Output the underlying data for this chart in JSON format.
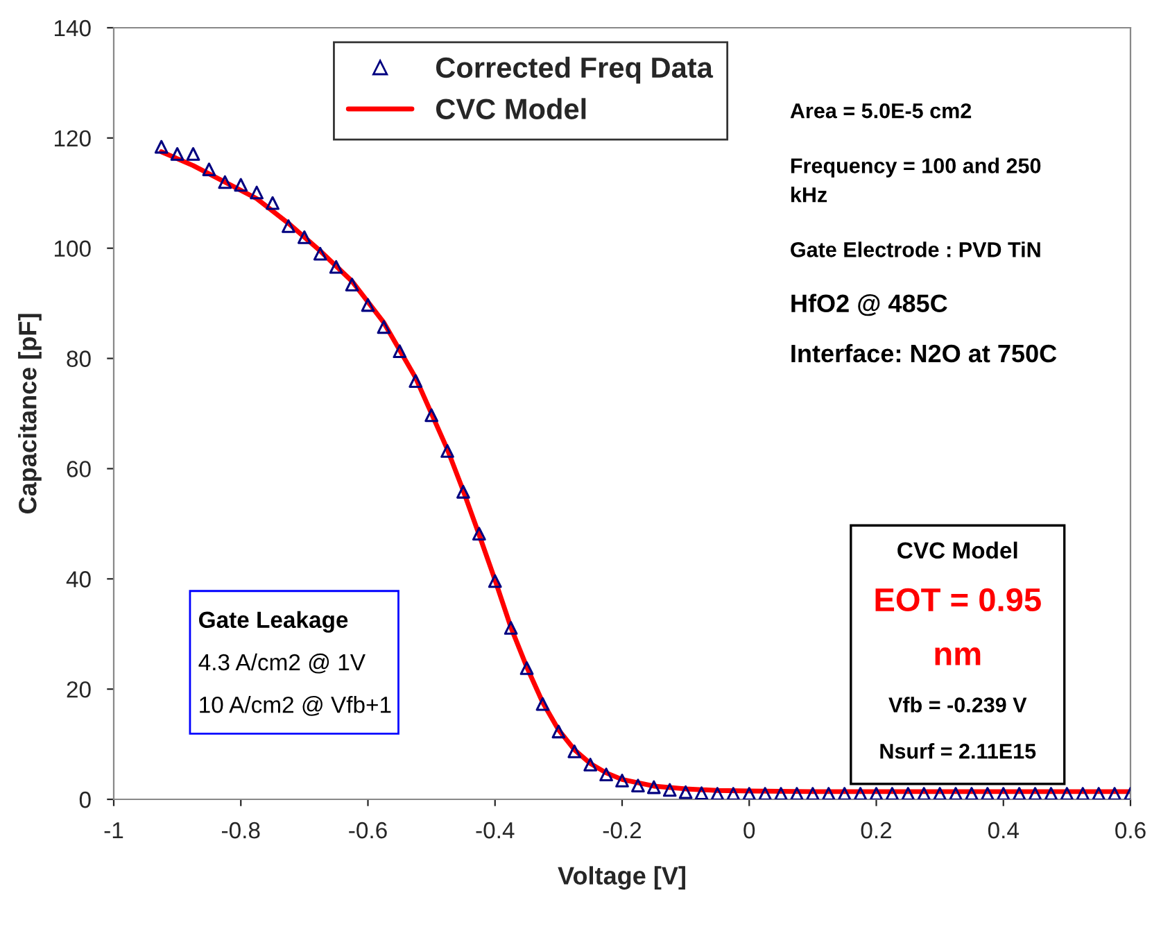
{
  "chart_data": {
    "type": "scatter",
    "xlabel": "Voltage [V]",
    "ylabel": "Capacitance [pF]",
    "xlim": [
      -1,
      0.6
    ],
    "xticks": [
      -1,
      -0.8,
      -0.6,
      -0.4,
      -0.2,
      0,
      0.2,
      0.4,
      0.6
    ],
    "ylim": [
      0,
      140
    ],
    "yticks": [
      0,
      20,
      40,
      60,
      80,
      100,
      120,
      140
    ],
    "grid": false,
    "legend": "top",
    "series": [
      {
        "name": "Corrected Freq Data",
        "marker": "triangle",
        "color": "#000080",
        "x": [
          -0.925,
          -0.9,
          -0.875,
          -0.85,
          -0.825,
          -0.8,
          -0.775,
          -0.75,
          -0.725,
          -0.7,
          -0.675,
          -0.65,
          -0.625,
          -0.6,
          -0.575,
          -0.55,
          -0.525,
          -0.5,
          -0.475,
          -0.45,
          -0.425,
          -0.4,
          -0.375,
          -0.35,
          -0.325,
          -0.3,
          -0.275,
          -0.25,
          -0.225,
          -0.2,
          -0.175,
          -0.15,
          -0.125,
          -0.1,
          -0.075,
          -0.05,
          -0.025,
          0,
          0.025,
          0.05,
          0.075,
          0.1,
          0.125,
          0.15,
          0.175,
          0.2,
          0.225,
          0.25,
          0.275,
          0.3,
          0.325,
          0.35,
          0.375,
          0.4,
          0.425,
          0.45,
          0.475,
          0.5,
          0.525,
          0.55,
          0.575,
          0.6
        ],
        "values": [
          118.4,
          117.1,
          117.1,
          114.3,
          112.0,
          111.5,
          110.1,
          108.2,
          104.0,
          102.0,
          99.0,
          96.6,
          93.4,
          89.7,
          85.7,
          81.3,
          75.9,
          69.7,
          63.2,
          55.8,
          48.2,
          39.6,
          31.1,
          23.8,
          17.3,
          12.3,
          8.7,
          6.3,
          4.5,
          3.4,
          2.5,
          2.2,
          1.7,
          1.3,
          1.1,
          1.0,
          1.0,
          1.0,
          1.0,
          1.0,
          1.0,
          1.0,
          1.0,
          1.0,
          1.0,
          1.0,
          1.0,
          1.0,
          1.0,
          1.0,
          1.0,
          1.0,
          1.0,
          1.0,
          1.0,
          1.0,
          1.0,
          1.0,
          1.0,
          1.0,
          1.0,
          1.0
        ]
      },
      {
        "name": "CVC Model",
        "type": "line",
        "line_style": "solid",
        "color": "#ff0000",
        "x": [
          -0.925,
          -0.875,
          -0.825,
          -0.775,
          -0.725,
          -0.675,
          -0.625,
          -0.575,
          -0.525,
          -0.475,
          -0.45,
          -0.425,
          -0.4,
          -0.375,
          -0.35,
          -0.325,
          -0.3,
          -0.275,
          -0.25,
          -0.225,
          -0.2,
          -0.15,
          -0.1,
          -0.05,
          0,
          0.1,
          0.2,
          0.3,
          0.4,
          0.5,
          0.6
        ],
        "values": [
          117.5,
          115.0,
          112.0,
          109.0,
          104.5,
          99.5,
          94.0,
          86.5,
          76.5,
          63.5,
          56.0,
          48.0,
          39.8,
          31.2,
          24.0,
          17.6,
          12.6,
          9.0,
          6.5,
          4.8,
          3.6,
          2.4,
          1.9,
          1.6,
          1.5,
          1.4,
          1.4,
          1.4,
          1.4,
          1.4,
          1.4
        ]
      }
    ],
    "annotations": [
      "Area = 5.0E-5 cm2",
      "Frequency = 100 and 250\nkHz",
      "Gate Electrode : PVD TiN",
      "HfO2 @ 485C",
      "Interface: N2O at 750C",
      "Gate Leakage",
      "4.3 A/cm2 @ 1V",
      "10 A/cm2 @ Vfb+1",
      "CVC Model",
      "EOT = 0.95",
      "nm",
      "Vfb = -0.239 V",
      "Nsurf = 2.11E15"
    ]
  }
}
